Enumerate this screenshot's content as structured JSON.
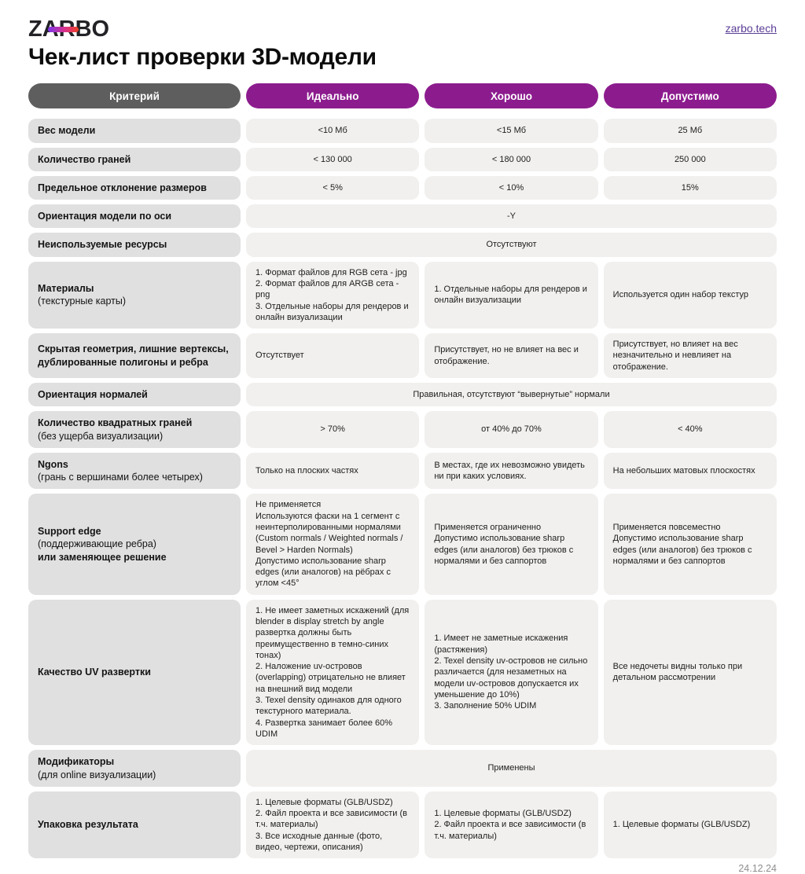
{
  "header": {
    "logo_text": "ZARBO",
    "site_link": "zarbo.tech",
    "title": "Чек-лист проверки 3D-модели"
  },
  "colors": {
    "accent_purple": "#8c1c8e",
    "header_gray": "#5e5e5e",
    "label_cell": "#e0e0e0",
    "value_cell": "#f1f0ee",
    "link_purple": "#5b3d96",
    "logo_gradient_start": "#7d35ec",
    "logo_gradient_end": "#ef4123"
  },
  "table": {
    "columns": [
      "Критерий",
      "Идеально",
      "Хорошо",
      "Допустимо"
    ],
    "rows": [
      {
        "label": "Вес модели",
        "cells": [
          "<10 Мб",
          "<15 Мб",
          "25 Мб"
        ]
      },
      {
        "label": "Количество граней",
        "cells": [
          "< 130 000",
          "< 180 000",
          "250 000"
        ]
      },
      {
        "label": "Предельное отклонение размеров",
        "cells": [
          "< 5%",
          "< 10%",
          "15%"
        ]
      },
      {
        "label": "Ориентация модели по оси",
        "span": "-Y"
      },
      {
        "label": "Неиспользуемые ресурсы",
        "span": "Отсутствуют"
      },
      {
        "label": "Материалы",
        "sublabel": "(текстурные карты)",
        "cells": [
          "1. Формат файлов для RGB сета - jpg\n2. Формат файлов для ARGB сета - png\n3. Отдельные наборы для рендеров и онлайн визуализации",
          "1. Отдельные наборы для рендеров и онлайн визуализации",
          "Используется один набор текстур"
        ]
      },
      {
        "label": "Скрытая геометрия, лишние вертексы, дублированные полигоны и ребра",
        "cells": [
          "Отсутствует",
          "Присутствует, но не влияет на вес и отображение.",
          "Присутствует, но влияет на вес незначительно и невлияет на отображение."
        ]
      },
      {
        "label": "Ориентация нормалей",
        "span": "Правильная, отсутствуют “вывернутые” нормали"
      },
      {
        "label": "Количество квадратных граней",
        "sublabel": "(без ущерба визуализации)",
        "cells": [
          "> 70%",
          "от 40% до 70%",
          "< 40%"
        ]
      },
      {
        "label": "Ngons",
        "sublabel": "(грань с вершинами более четырех)",
        "cells": [
          "Только на плоских частях",
          "В местах, где их невозможно увидеть ни при каких условиях.",
          "На небольших матовых плоскостях"
        ]
      },
      {
        "label": "Support edge",
        "sublabel": "(поддерживающие ребра)",
        "label2": "или заменяющее решение",
        "cells": [
          "Не применяется\nИспользуются фаски на 1 сегмент с неинтерполированными нормалями (Custom normals / Weighted normals / Bevel > Harden Normals)\nДопустимо использование sharp edges (или аналогов) на рёбрах с углом <45°",
          "Применяется ограниченно\nДопустимо использование sharp edges (или аналогов) без трюков с нормалями и без саппортов",
          "Применяется повсеместно\nДопустимо использование sharp edges (или аналогов) без трюков с нормалями и без саппортов"
        ]
      },
      {
        "label": "Качество UV развертки",
        "cells": [
          "1. Не имеет заметных искажений (для blender в display stretch by angle развертка должны быть преимущественно в темно-синих тонах)\n2. Наложение uv-островов (overlapping) отрицательно не влияет на внешний вид модели\n3. Texel density одинаков для одного текстурного материала.\n4. Развертка занимает более 60% UDIM",
          "1. Имеет не заметные искажения (растяжения)\n2. Texel density uv-островов не сильно различается (для незаметных на модели uv-островов допускается их уменьшение до 10%)\n3. Заполнение 50% UDIM",
          "Все недочеты видны только при детальном рассмотрении"
        ]
      },
      {
        "label": "Модификаторы",
        "sublabel": "(для online визуализации)",
        "span": "Применены"
      },
      {
        "label": "Упаковка результата",
        "cells": [
          "1. Целевые форматы (GLB/USDZ)\n2. Файл проекта и все зависимости (в т.ч. материалы)\n3. Все исходные данные (фото, видео, чертежи, описания)",
          "1. Целевые форматы (GLB/USDZ)\n2. Файл проекта и все зависимости (в т.ч. материалы)",
          "1. Целевые форматы (GLB/USDZ)"
        ]
      }
    ]
  },
  "footer": {
    "date": "24.12.24"
  }
}
